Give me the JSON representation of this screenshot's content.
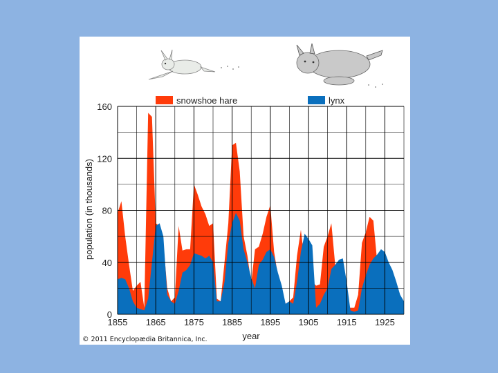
{
  "colors": {
    "background": "#8db3e2",
    "hare": "#ff3b0a",
    "lynx": "#0a6fbd",
    "grid": "#000000"
  },
  "illustrations": {
    "hare_icon": "snowshoe-hare-drawing",
    "lynx_icon": "lynx-drawing"
  },
  "copyright": "© 2011 Encyclopædia Britannica, Inc.",
  "chart_data": {
    "type": "area",
    "xlabel": "year",
    "ylabel": "population (in thousands)",
    "xlim": [
      1855,
      1930
    ],
    "ylim": [
      0,
      160
    ],
    "x_ticks": [
      1855,
      1865,
      1875,
      1885,
      1895,
      1905,
      1915,
      1925
    ],
    "y_ticks": [
      0,
      40,
      80,
      120,
      160
    ],
    "grid": true,
    "legend_position": "top",
    "series": [
      {
        "name": "snowshoe hare",
        "color": "#ff3b0a",
        "points": [
          [
            1855,
            78
          ],
          [
            1856,
            87
          ],
          [
            1857,
            60
          ],
          [
            1858,
            38
          ],
          [
            1859,
            18
          ],
          [
            1860,
            22
          ],
          [
            1861,
            25
          ],
          [
            1862,
            5
          ],
          [
            1863,
            155
          ],
          [
            1864,
            152
          ],
          [
            1865,
            70
          ],
          [
            1866,
            68
          ],
          [
            1867,
            55
          ],
          [
            1868,
            20
          ],
          [
            1869,
            10
          ],
          [
            1870,
            13
          ],
          [
            1871,
            68
          ],
          [
            1872,
            49
          ],
          [
            1873,
            50
          ],
          [
            1874,
            50
          ],
          [
            1875,
            100
          ],
          [
            1876,
            92
          ],
          [
            1877,
            83
          ],
          [
            1878,
            77
          ],
          [
            1879,
            68
          ],
          [
            1880,
            70
          ],
          [
            1881,
            12
          ],
          [
            1882,
            10
          ],
          [
            1883,
            40
          ],
          [
            1884,
            70
          ],
          [
            1885,
            130
          ],
          [
            1886,
            132
          ],
          [
            1887,
            110
          ],
          [
            1888,
            60
          ],
          [
            1889,
            45
          ],
          [
            1890,
            24
          ],
          [
            1891,
            50
          ],
          [
            1892,
            52
          ],
          [
            1893,
            62
          ],
          [
            1894,
            75
          ],
          [
            1895,
            84
          ],
          [
            1896,
            48
          ],
          [
            1897,
            30
          ],
          [
            1898,
            18
          ],
          [
            1899,
            8
          ],
          [
            1900,
            10
          ],
          [
            1901,
            13
          ],
          [
            1902,
            45
          ],
          [
            1903,
            65
          ],
          [
            1904,
            40
          ],
          [
            1905,
            56
          ],
          [
            1906,
            25
          ],
          [
            1907,
            22
          ],
          [
            1908,
            23
          ],
          [
            1909,
            52
          ],
          [
            1910,
            60
          ],
          [
            1911,
            70
          ],
          [
            1912,
            38
          ],
          [
            1913,
            30
          ],
          [
            1914,
            15
          ],
          [
            1915,
            5
          ],
          [
            1916,
            5
          ],
          [
            1917,
            5
          ],
          [
            1918,
            15
          ],
          [
            1919,
            55
          ],
          [
            1920,
            63
          ],
          [
            1921,
            75
          ],
          [
            1922,
            72
          ],
          [
            1923,
            40
          ],
          [
            1924,
            45
          ],
          [
            1925,
            42
          ],
          [
            1926,
            30
          ],
          [
            1927,
            22
          ],
          [
            1928,
            15
          ],
          [
            1929,
            6
          ],
          [
            1930,
            4
          ]
        ]
      },
      {
        "name": "lynx",
        "color": "#0a6fbd",
        "points": [
          [
            1855,
            27
          ],
          [
            1856,
            28
          ],
          [
            1857,
            27
          ],
          [
            1858,
            20
          ],
          [
            1859,
            10
          ],
          [
            1860,
            5
          ],
          [
            1861,
            4
          ],
          [
            1862,
            3
          ],
          [
            1863,
            12
          ],
          [
            1864,
            40
          ],
          [
            1865,
            68
          ],
          [
            1866,
            70
          ],
          [
            1867,
            60
          ],
          [
            1868,
            15
          ],
          [
            1869,
            10
          ],
          [
            1870,
            8
          ],
          [
            1871,
            18
          ],
          [
            1872,
            32
          ],
          [
            1873,
            34
          ],
          [
            1874,
            38
          ],
          [
            1875,
            47
          ],
          [
            1876,
            46
          ],
          [
            1877,
            45
          ],
          [
            1878,
            43
          ],
          [
            1879,
            45
          ],
          [
            1880,
            40
          ],
          [
            1881,
            10
          ],
          [
            1882,
            10
          ],
          [
            1883,
            25
          ],
          [
            1884,
            55
          ],
          [
            1885,
            70
          ],
          [
            1886,
            78
          ],
          [
            1887,
            72
          ],
          [
            1888,
            50
          ],
          [
            1889,
            40
          ],
          [
            1890,
            28
          ],
          [
            1891,
            20
          ],
          [
            1892,
            38
          ],
          [
            1893,
            42
          ],
          [
            1894,
            48
          ],
          [
            1895,
            50
          ],
          [
            1896,
            44
          ],
          [
            1897,
            32
          ],
          [
            1898,
            22
          ],
          [
            1899,
            8
          ],
          [
            1900,
            10
          ],
          [
            1901,
            8
          ],
          [
            1902,
            25
          ],
          [
            1903,
            48
          ],
          [
            1904,
            62
          ],
          [
            1905,
            58
          ],
          [
            1906,
            53
          ],
          [
            1907,
            5
          ],
          [
            1908,
            8
          ],
          [
            1909,
            15
          ],
          [
            1910,
            20
          ],
          [
            1911,
            35
          ],
          [
            1912,
            38
          ],
          [
            1913,
            42
          ],
          [
            1914,
            43
          ],
          [
            1915,
            25
          ],
          [
            1916,
            3
          ],
          [
            1917,
            2
          ],
          [
            1918,
            3
          ],
          [
            1919,
            20
          ],
          [
            1920,
            30
          ],
          [
            1921,
            38
          ],
          [
            1922,
            43
          ],
          [
            1923,
            46
          ],
          [
            1924,
            50
          ],
          [
            1925,
            48
          ],
          [
            1926,
            40
          ],
          [
            1927,
            34
          ],
          [
            1928,
            25
          ],
          [
            1929,
            15
          ],
          [
            1930,
            10
          ]
        ]
      }
    ]
  }
}
